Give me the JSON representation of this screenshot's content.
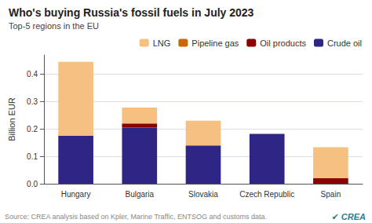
{
  "chart_data": {
    "type": "bar",
    "title": "Who's buying Russia's fossil fuels in July 2023",
    "subtitle": "Top-5 regions in the EU",
    "ylabel": "Billion EUR",
    "annotations": [
      "Source: CREA analysis based on Kpler, Marine Traffic, ENTSOG and customs data.",
      "✔ CREA"
    ],
    "categories": [
      "Hungary",
      "Bulgaria",
      "Slovakia",
      "Czech Republic",
      "Spain"
    ],
    "series": [
      {
        "name": "Crude oil",
        "color": "#2e2585",
        "values": [
          0.175,
          0.205,
          0.14,
          0.182,
          0.0
        ]
      },
      {
        "name": "Oil products",
        "color": "#8b0000",
        "values": [
          0.0,
          0.015,
          0.0,
          0.0,
          0.02
        ]
      },
      {
        "name": "Pipeline gas",
        "color": "#cc6600",
        "values": [
          0.0,
          0.0,
          0.0,
          0.0,
          0.0
        ]
      },
      {
        "name": "LNG",
        "color": "#f5c080",
        "values": [
          0.27,
          0.058,
          0.09,
          0.0,
          0.113
        ]
      }
    ],
    "stacked": true,
    "ylim": [
      0,
      0.47
    ],
    "yticks": [
      {
        "value": 0,
        "label": "0.0"
      },
      0.1,
      0.2,
      0.3,
      0.4
    ],
    "grid": true,
    "legend": "upper right"
  }
}
